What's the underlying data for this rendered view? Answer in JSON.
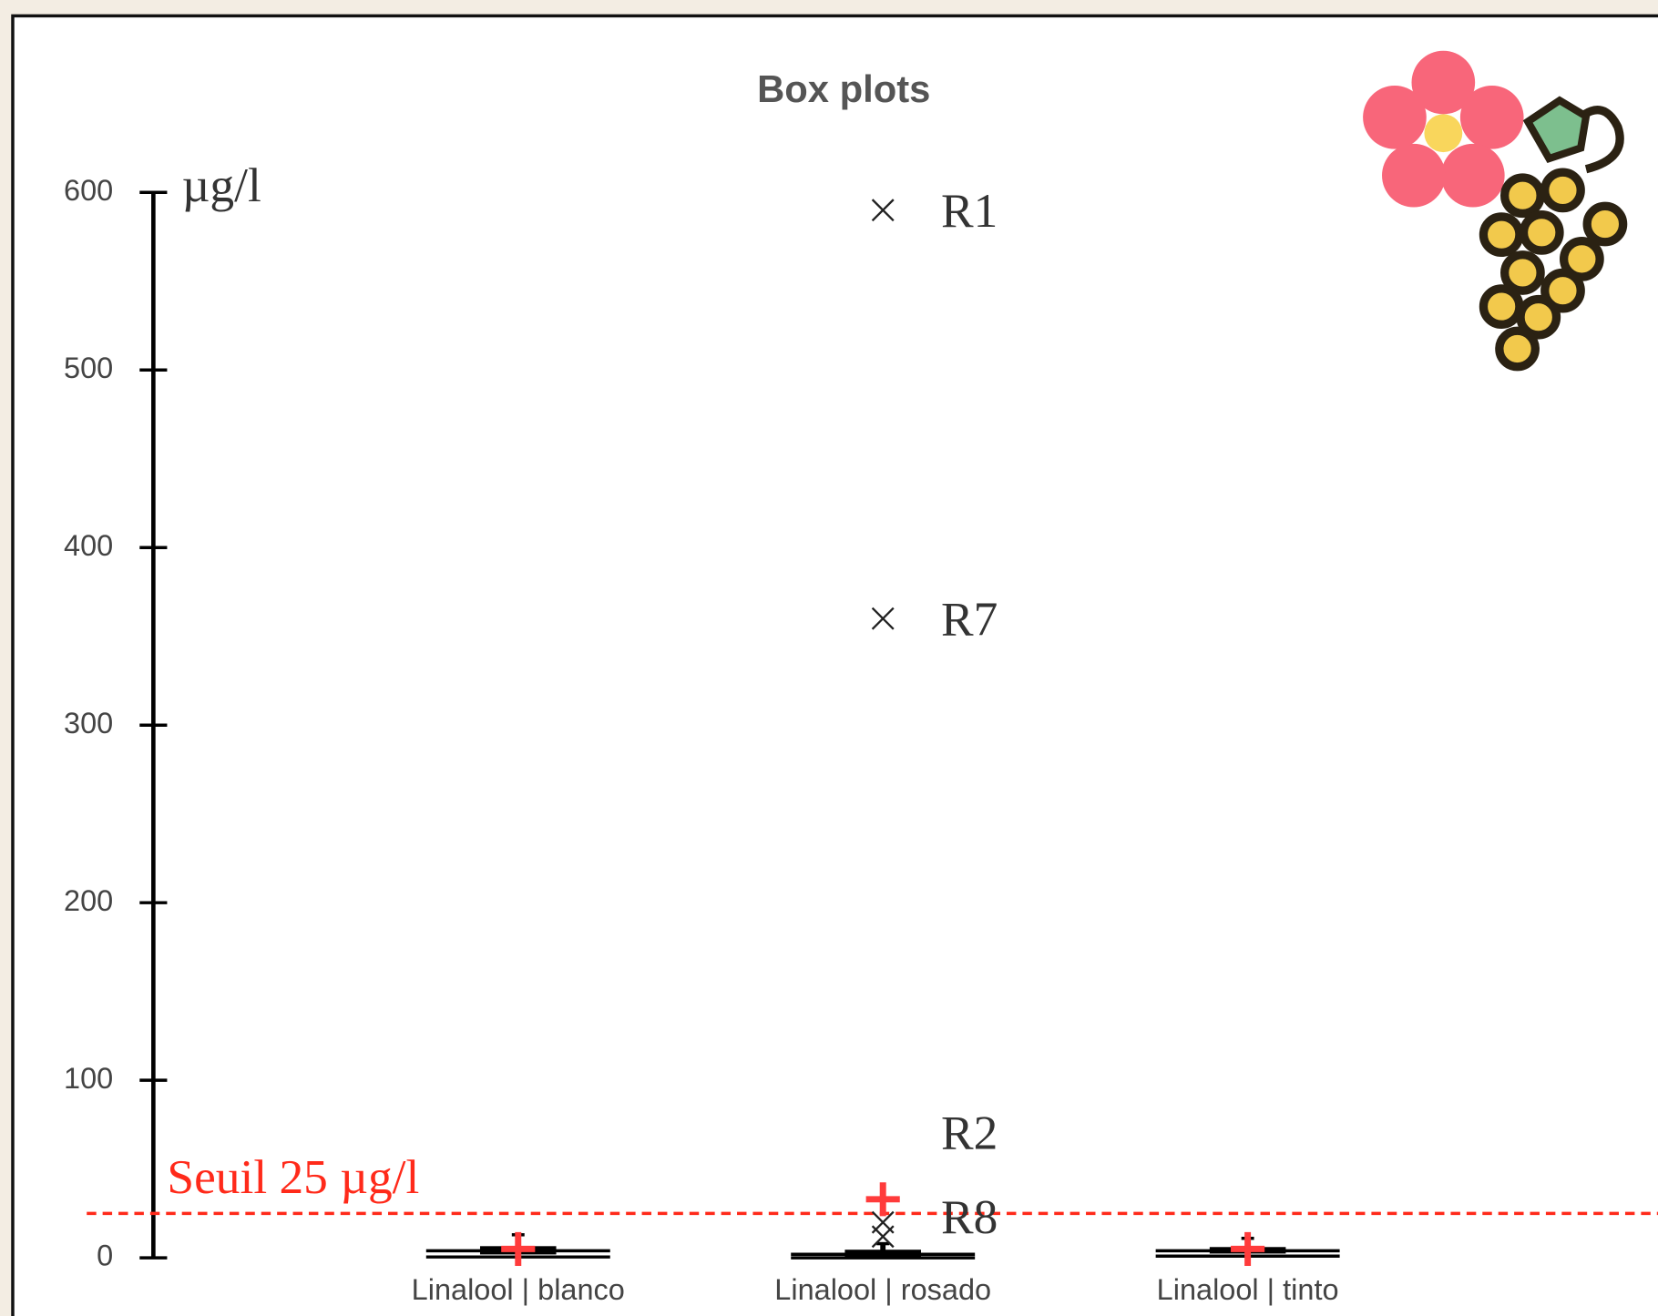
{
  "chart_data": {
    "type": "box",
    "title": "Box plots",
    "y_unit_label": "µg/l",
    "categories": [
      "Linalool | blanco",
      "Linalool | rosado",
      "Linalool | tinto"
    ],
    "boxes": [
      {
        "min": 0.5,
        "q1": 2.5,
        "median": 4,
        "q3": 6,
        "max": 13,
        "mean": 5,
        "outliers": []
      },
      {
        "min": 0,
        "q1": 1,
        "median": 2,
        "q3": 4,
        "max": 8,
        "mean": 33,
        "outliers": [
          {
            "label": "R1",
            "value": 590
          },
          {
            "label": "R7",
            "value": 360
          },
          {
            "label": "R2",
            "value": 20
          },
          {
            "label": "R8",
            "value": 12
          }
        ]
      },
      {
        "min": 1,
        "q1": 3,
        "median": 4,
        "q3": 5.5,
        "max": 11,
        "mean": 5,
        "outliers": []
      }
    ],
    "mean_color": "#ff3b3b",
    "box_color": "#000000",
    "threshold": {
      "value": 25,
      "label": "Seuil 25 µg/l",
      "color": "#ff2a1a"
    },
    "ylim": [
      0,
      600
    ],
    "yticks": [
      0,
      100,
      200,
      300,
      400,
      500,
      600
    ]
  }
}
